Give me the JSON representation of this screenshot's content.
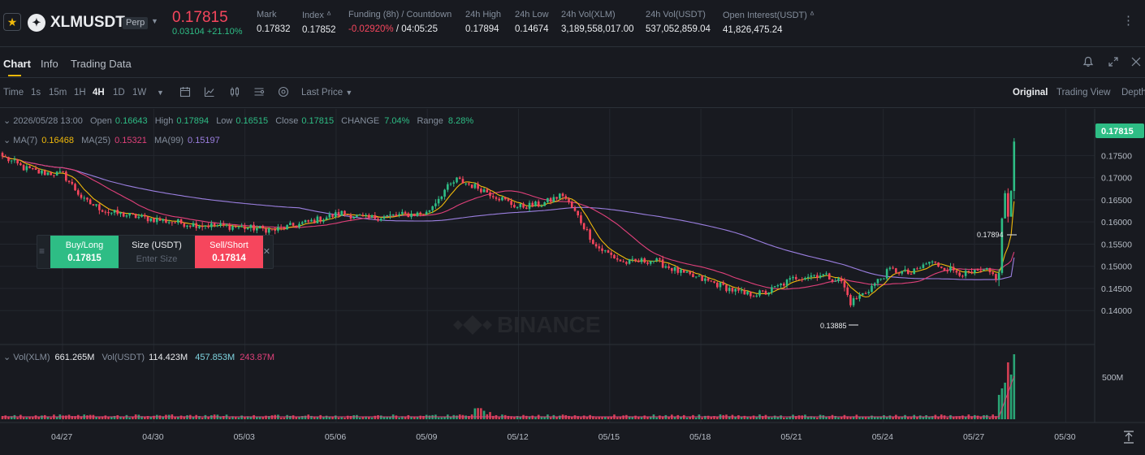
{
  "ticker": {
    "symbol": "XLMUSDT",
    "badge": "Perp",
    "coin_glyph": "✦",
    "last_price": "0.17815",
    "change": "0.03104 +21.10%",
    "stats": [
      {
        "label": "Mark",
        "value": "0.17832",
        "tone": "neutral"
      },
      {
        "label": "Index ᐞ",
        "value": "0.17852",
        "tone": "neutral"
      },
      {
        "label": "Funding (8h) / Countdown",
        "value": "-0.02920%",
        "value2": " / 04:05:25",
        "tone": "down"
      },
      {
        "label": "24h High",
        "value": "0.17894",
        "tone": "neutral"
      },
      {
        "label": "24h Low",
        "value": "0.14674",
        "tone": "neutral"
      },
      {
        "label": "24h Vol(XLM)",
        "value": "3,189,558,017.00",
        "tone": "neutral"
      },
      {
        "label": "24h Vol(USDT)",
        "value": "537,052,859.04",
        "tone": "neutral"
      },
      {
        "label": "Open Interest(USDT) ᐞ",
        "value": "41,826,475.24",
        "tone": "neutral"
      }
    ],
    "more_glyph": "⋮"
  },
  "tabs": {
    "items": [
      "Chart",
      "Info",
      "Trading Data"
    ],
    "active": "Chart",
    "icons": [
      "bell-icon",
      "expand-icon",
      "close-icon"
    ]
  },
  "toolbar": {
    "timeframes": [
      "Time",
      "1s",
      "15m",
      "1H",
      "4H",
      "1D",
      "1W"
    ],
    "active_timeframe": "4H",
    "price_type": "Last Price",
    "views": [
      "Original",
      "Trading View",
      "Depth"
    ],
    "active_view": "Original",
    "icons": [
      "chevron-down-icon",
      "calendar-icon",
      "line-chart-icon",
      "candle-settings-icon",
      "indicator-icon",
      "settings-icon"
    ]
  },
  "chart_info": {
    "date": "2026/05/28 13:00",
    "open_label": "Open",
    "open": "0.16643",
    "high_label": "High",
    "high": "0.17894",
    "low_label": "Low",
    "low": "0.16515",
    "close_label": "Close",
    "close": "0.17815",
    "change_label": "CHANGE",
    "change": "7.04%",
    "range_label": "Range",
    "range": "8.28%"
  },
  "ma_legend": {
    "ma7_label": "MA(7)",
    "ma7": "0.16468",
    "ma25_label": "MA(25)",
    "ma25": "0.15321",
    "ma99_label": "MA(99)",
    "ma99": "0.15197"
  },
  "vol_legend": {
    "xlm_label": "Vol(XLM)",
    "xlm": "661.265M",
    "usdt_label": "Vol(USDT)",
    "usdt": "114.423M",
    "v1": "457.853M",
    "v2": "243.87M"
  },
  "order_panel": {
    "buy_label": "Buy/Long",
    "buy_price": "0.17815",
    "size_label": "Size (USDT)",
    "size_placeholder": "Enter Size",
    "sell_label": "Sell/Short",
    "sell_price": "0.17814"
  },
  "colors": {
    "up": "#2ebd85",
    "down": "#f6465d",
    "ma7": "#f0b90b",
    "ma25": "#e0407a",
    "ma99": "#9b7fe0",
    "bg": "#181a20",
    "grid": "#23272e"
  },
  "chart_data": {
    "type": "candlestick",
    "interval": "4H",
    "price_ticks": [
      "0.17500",
      "0.17000",
      "0.16500",
      "0.16000",
      "0.15500",
      "0.15000",
      "0.14500",
      "0.14000"
    ],
    "current_price_label": "0.17815",
    "high_marker": "0.17894",
    "low_marker": "0.13885",
    "volume_tick": "500M",
    "x_labels": [
      "04/27",
      "04/30",
      "05/03",
      "05/06",
      "05/09",
      "05/12",
      "05/15",
      "05/18",
      "05/21",
      "05/24",
      "05/27",
      "05/30"
    ],
    "ylim": [
      0.136,
      0.1815
    ],
    "close_anchors": [
      [
        0,
        0.1748
      ],
      [
        7,
        0.1722
      ],
      [
        12,
        0.1712
      ],
      [
        20,
        0.1708
      ],
      [
        27,
        0.1648
      ],
      [
        35,
        0.1622
      ],
      [
        48,
        0.1608
      ],
      [
        62,
        0.1595
      ],
      [
        75,
        0.159
      ],
      [
        90,
        0.1582
      ],
      [
        100,
        0.1598
      ],
      [
        112,
        0.162
      ],
      [
        120,
        0.1608
      ],
      [
        130,
        0.1615
      ],
      [
        140,
        0.162
      ],
      [
        146,
        0.1672
      ],
      [
        150,
        0.1695
      ],
      [
        158,
        0.1675
      ],
      [
        164,
        0.1655
      ],
      [
        170,
        0.1634
      ],
      [
        178,
        0.164
      ],
      [
        185,
        0.1662
      ],
      [
        190,
        0.1612
      ],
      [
        196,
        0.1545
      ],
      [
        205,
        0.1508
      ],
      [
        215,
        0.1514
      ],
      [
        225,
        0.1482
      ],
      [
        235,
        0.1462
      ],
      [
        245,
        0.1436
      ],
      [
        252,
        0.144
      ],
      [
        262,
        0.1475
      ],
      [
        270,
        0.1482
      ],
      [
        277,
        0.1466
      ],
      [
        280,
        0.1418
      ],
      [
        285,
        0.1442
      ],
      [
        293,
        0.1492
      ],
      [
        300,
        0.1483
      ],
      [
        306,
        0.151
      ],
      [
        312,
        0.1495
      ],
      [
        318,
        0.1482
      ],
      [
        325,
        0.1488
      ],
      [
        328,
        0.1476
      ],
      [
        329,
        0.1485
      ],
      [
        330,
        0.1608
      ],
      [
        331,
        0.1665
      ],
      [
        332,
        0.1612
      ],
      [
        333,
        0.167
      ],
      [
        334,
        0.1782
      ]
    ],
    "ma7_end": 0.16468,
    "ma25_end": 0.15321,
    "ma99_end": 0.15197
  }
}
